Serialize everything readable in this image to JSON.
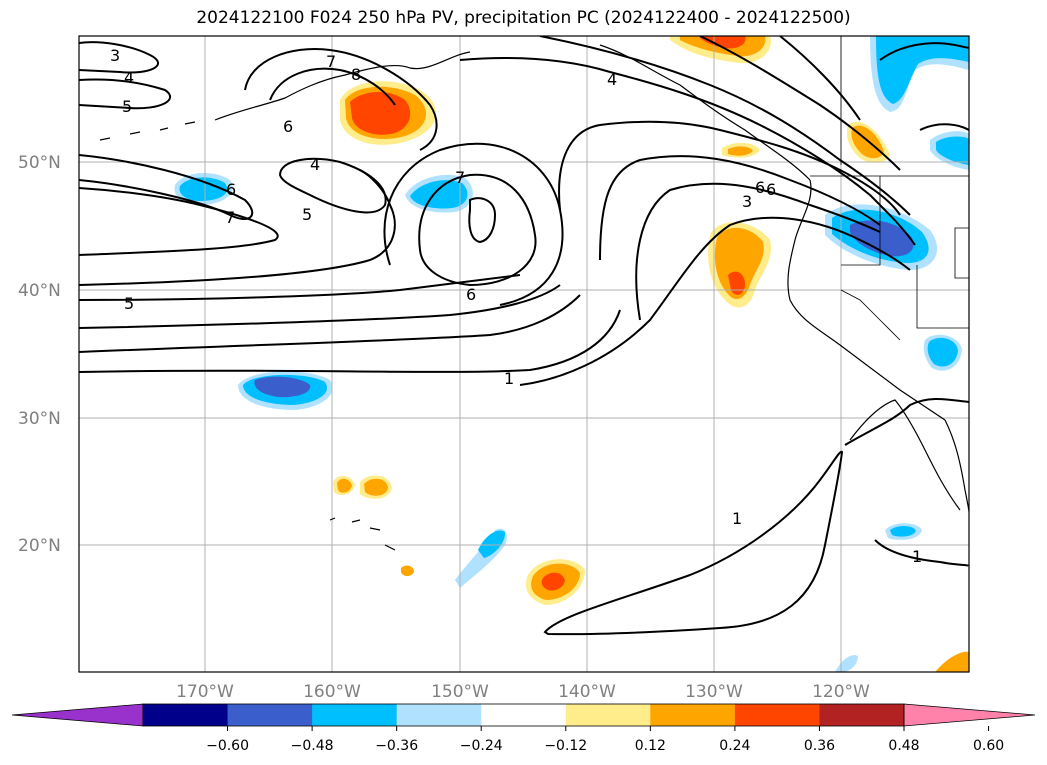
{
  "title": "2024122100 F024 250 hPa PV, precipitation PC (2024122400 - 2024122500)",
  "lat_labels": [
    "50°N",
    "40°N",
    "30°N",
    "20°N"
  ],
  "lon_labels": [
    "170°W",
    "160°W",
    "150°W",
    "140°W",
    "130°W",
    "120°W"
  ],
  "contour_labels": [
    "3",
    "4",
    "5",
    "6",
    "7",
    "8",
    "6",
    "4",
    "5",
    "6",
    "7",
    "7",
    "5",
    "6",
    "4",
    "3",
    "6",
    "1",
    "1",
    "1"
  ],
  "colorbar": {
    "ticks": [
      "−0.60",
      "−0.48",
      "−0.36",
      "−0.24",
      "−0.12",
      "0.12",
      "0.24",
      "0.36",
      "0.48",
      "0.60"
    ],
    "colors": [
      "#9932cc",
      "#00008b",
      "#3a5fcd",
      "#00bfff",
      "#b0e2ff",
      "#ffffff",
      "#ffec8b",
      "#ffa500",
      "#ff4500",
      "#b22222",
      "#ff82ab"
    ]
  }
}
